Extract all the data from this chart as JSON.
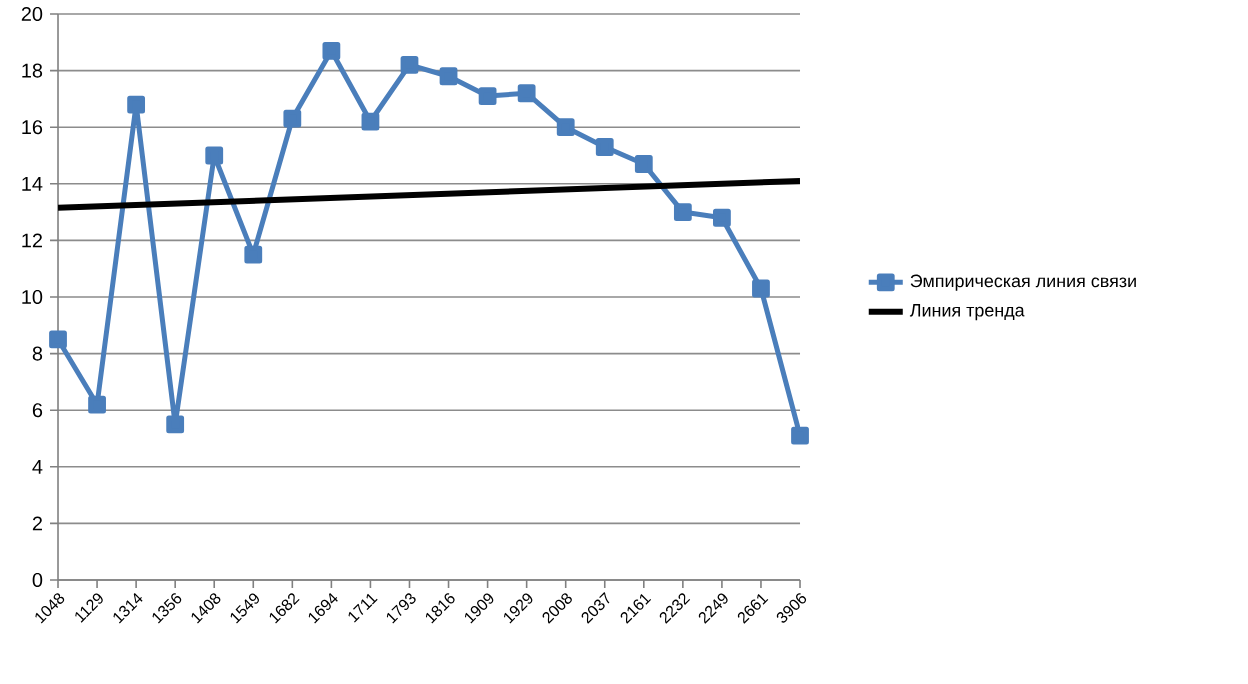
{
  "chart_data": {
    "type": "line",
    "categories": [
      "1048",
      "1129",
      "1314",
      "1356",
      "1408",
      "1549",
      "1682",
      "1694",
      "1711",
      "1793",
      "1816",
      "1909",
      "1929",
      "2008",
      "2037",
      "2161",
      "2232",
      "2249",
      "2661",
      "3906"
    ],
    "series": [
      {
        "name": "Эмпирическая линия связи",
        "color": "#4a7ebb",
        "marker": "square",
        "values": [
          8.5,
          6.2,
          16.8,
          5.5,
          15.0,
          11.5,
          16.3,
          18.7,
          16.2,
          18.2,
          17.8,
          17.1,
          17.2,
          16.0,
          15.3,
          14.7,
          13.0,
          12.8,
          10.3,
          5.1
        ]
      },
      {
        "name": "Линия тренда",
        "color": "#000000",
        "marker": "none",
        "values": [
          13.15,
          null,
          null,
          null,
          null,
          null,
          null,
          null,
          null,
          null,
          null,
          null,
          null,
          null,
          null,
          null,
          null,
          null,
          null,
          14.1
        ]
      }
    ],
    "ylim": [
      0,
      20
    ],
    "yticks": [
      0,
      2,
      4,
      6,
      8,
      10,
      12,
      14,
      16,
      18,
      20
    ],
    "grid": "y",
    "legend": "right"
  }
}
